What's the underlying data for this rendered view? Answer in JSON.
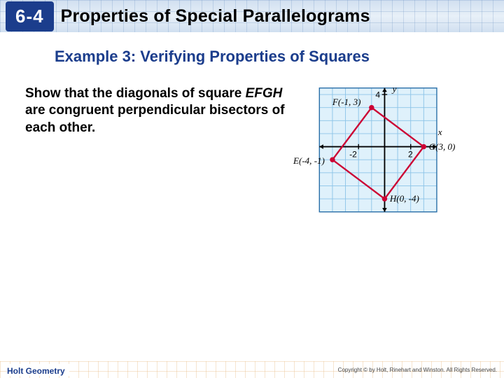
{
  "header": {
    "section_number": "6-4",
    "title": "Properties of Special Parallelograms",
    "badge_bg": "#1b3d8c",
    "badge_fg": "#ffffff"
  },
  "example": {
    "title": "Example 3: Verifying Properties of Squares",
    "title_color": "#1b3d8c",
    "prompt_pre": "Show that the diagonals of square ",
    "prompt_italic": "EFGH",
    "prompt_post": " are congruent perpendicular bisectors of each other."
  },
  "graph": {
    "type": "coordinate-plane-with-quadrilateral",
    "cell": 20,
    "x_range": [
      -5,
      4
    ],
    "y_range": [
      -5,
      4.5
    ],
    "grid_color": "#8cc4e8",
    "axis_color": "#000000",
    "background": "#dff1fb",
    "tick_font": 13,
    "labels": {
      "x": "x",
      "y": "y"
    },
    "ticks_x": [
      {
        "v": -2,
        "label": "-2"
      },
      {
        "v": 2,
        "label": "2"
      }
    ],
    "ticks_y": [
      {
        "v": 4,
        "label": "4"
      }
    ],
    "points": {
      "E": {
        "x": -4,
        "y": -1,
        "label": "E(-4, -1)",
        "lx": -60,
        "ly": 6
      },
      "F": {
        "x": -1,
        "y": 3,
        "label": "F(-1, 3)",
        "lx": -60,
        "ly": -4
      },
      "G": {
        "x": 3,
        "y": 0,
        "label": "G(3, 0)",
        "lx": 8,
        "ly": 5
      },
      "H": {
        "x": 0,
        "y": -4,
        "label": "H(0, -4)",
        "lx": 8,
        "ly": 4
      }
    },
    "polygon_order": [
      "E",
      "F",
      "G",
      "H"
    ],
    "polygon_stroke": "#cc0033",
    "polygon_width": 2.5,
    "point_fill": "#cc0033",
    "point_radius": 4,
    "label_font": 14
  },
  "footer": {
    "left": "Holt Geometry",
    "right": "Copyright © by Holt, Rinehart and Winston. All Rights Reserved."
  }
}
